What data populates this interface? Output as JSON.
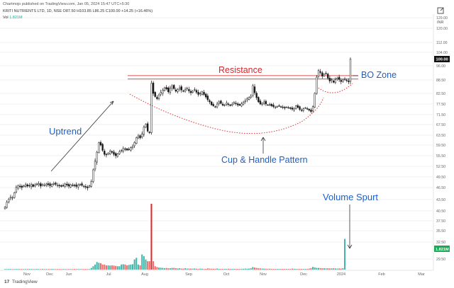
{
  "header": {
    "publisher": "Chartmojo published on TradingView.com, Jan 05, 2024 15:47 UTC+5:30",
    "symbol_line": "KRITI NUTRIENTS LTD, 1D, NSE  O87.50  H103.85  L86.25  C100.00  +14.25 (+16.46%)",
    "volume_label": "Vol",
    "volume_value": "1.821M"
  },
  "annotations": {
    "uptrend": "Uptrend",
    "resistance": "Resistance",
    "bo_zone": "BO Zone",
    "cup_handle": "Cup & Handle Pattern",
    "volume_spurt": "Volume Spurt"
  },
  "branding": {
    "logo": "17",
    "name": "TradingView"
  },
  "chart_data": {
    "type": "candlestick",
    "title": "KRITI NUTRIENTS LTD, 1D, NSE",
    "currency": "INR",
    "price_axis_labels": [
      "129.00",
      "120.00",
      "112.00",
      "104.00",
      "96.00",
      "88.50",
      "82.50",
      "77.50",
      "71.50",
      "67.50",
      "63.50",
      "59.50",
      "55.50",
      "52.50",
      "49.50",
      "46.50",
      "43.50",
      "40.50",
      "37.50",
      "35.50",
      "32.50",
      "29.50"
    ],
    "last_price": "100.00",
    "last_volume": "1.821M",
    "time_axis_labels": [
      "Nov",
      "Dec",
      "Jun",
      "Jul",
      "Aug",
      "Sep",
      "Oct",
      "Nov",
      "Dec",
      "2024",
      "Feb",
      "Mar"
    ],
    "resistance_levels": [
      89.0,
      90.8
    ],
    "close_series": [
      41.5,
      42.8,
      43.6,
      44.1,
      44.0,
      45.2,
      46.6,
      47.0,
      46.8,
      46.5,
      47.0,
      47.3,
      46.9,
      47.0,
      47.4,
      46.8,
      47.2,
      47.5,
      47.6,
      46.9,
      47.4,
      47.2,
      47.5,
      47.3,
      47.0,
      47.4,
      47.6,
      47.4,
      47.2,
      47.0,
      46.8,
      47.0,
      47.5,
      47.2,
      46.9,
      47.3,
      47.1,
      47.0,
      46.8,
      47.2,
      47.4,
      47.1,
      46.9,
      46.6,
      46.4,
      47.0,
      48.2,
      51.5,
      54.0,
      56.8,
      60.5,
      59.5,
      57.5,
      56.0,
      55.8,
      56.5,
      57.2,
      56.8,
      56.0,
      55.5,
      56.2,
      57.0,
      57.5,
      58.2,
      58.0,
      57.6,
      57.8,
      58.5,
      59.0,
      60.5,
      62.5,
      63.2,
      62.4,
      64.0,
      66.5,
      67.6,
      65.0,
      64.6,
      87.0,
      82.5,
      81.0,
      80.0,
      81.8,
      83.0,
      84.0,
      85.0,
      84.5,
      83.2,
      84.8,
      85.8,
      84.6,
      83.5,
      84.2,
      85.0,
      84.0,
      83.5,
      84.2,
      84.8,
      83.6,
      82.8,
      83.5,
      84.2,
      83.0,
      82.0,
      82.5,
      83.2,
      82.0,
      80.8,
      79.5,
      78.5,
      77.0,
      76.5,
      76.0,
      77.5,
      78.5,
      77.8,
      76.8,
      77.0,
      78.0,
      77.2,
      76.6,
      77.4,
      78.2,
      77.6,
      77.0,
      76.8,
      77.6,
      78.4,
      79.0,
      80.0,
      80.6,
      81.2,
      86.0,
      82.8,
      80.5,
      78.5,
      77.5,
      77.8,
      78.5,
      77.5,
      77.0,
      77.2,
      76.5,
      76.0,
      75.8,
      76.2,
      76.5,
      76.0,
      75.5,
      75.2,
      75.8,
      75.4,
      75.0,
      74.6,
      75.0,
      76.5,
      75.6,
      74.4,
      73.9,
      74.8,
      75.4,
      74.7,
      74.0,
      73.2,
      76.0,
      82.5,
      90.0,
      93.5,
      92.5,
      90.5,
      91.5,
      92.0,
      89.5,
      88.0,
      88.6,
      87.5,
      88.8,
      89.5,
      88.7,
      87.8,
      88.5,
      89.0,
      88.3,
      87.7,
      100.0
    ],
    "volume_series_k": [
      30,
      20,
      40,
      10,
      30,
      20,
      30,
      40,
      20,
      30,
      20,
      20,
      30,
      40,
      30,
      20,
      30,
      40,
      20,
      30,
      40,
      30,
      30,
      20,
      30,
      40,
      30,
      20,
      30,
      30,
      20,
      20,
      30,
      30,
      20,
      20,
      30,
      40,
      30,
      20,
      30,
      30,
      20,
      20,
      20,
      30,
      100,
      200,
      300,
      450,
      400,
      380,
      300,
      300,
      250,
      250,
      240,
      250,
      240,
      220,
      200,
      200,
      300,
      320,
      300,
      250,
      280,
      300,
      320,
      600,
      700,
      300,
      250,
      900,
      800,
      600,
      500,
      500,
      3900,
      500,
      200,
      150,
      120,
      110,
      100,
      80,
      100,
      80,
      80,
      100,
      100,
      80,
      70,
      80,
      60,
      60,
      80,
      60,
      60,
      60,
      50,
      70,
      50,
      40,
      60,
      50,
      40,
      40,
      70,
      60,
      50,
      50,
      50,
      60,
      40,
      40,
      40,
      40,
      40,
      50,
      40,
      40,
      40,
      40,
      40,
      40,
      40,
      50,
      60,
      50,
      60,
      80,
      150,
      120,
      100,
      80,
      70,
      60,
      60,
      50,
      50,
      50,
      40,
      40,
      40,
      40,
      40,
      40,
      40,
      40,
      40,
      40,
      40,
      60,
      50,
      40,
      40,
      40,
      40,
      40,
      40,
      40,
      60,
      90,
      160,
      130,
      100,
      100,
      90,
      80,
      80,
      70,
      80,
      70,
      70,
      80,
      70,
      60,
      70,
      60,
      80,
      1821
    ],
    "ylim": [
      29.5,
      129.0
    ],
    "xlabel": "",
    "ylabel": ""
  }
}
